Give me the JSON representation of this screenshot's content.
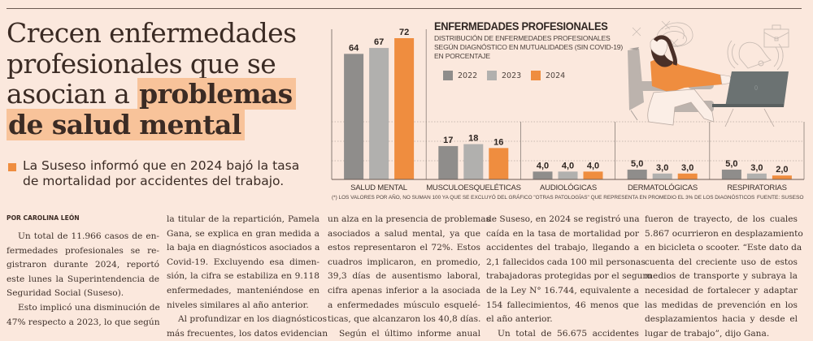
{
  "headline": {
    "lines": [
      "Crecen enfermedades",
      "profesionales que se",
      "asocian a "
    ],
    "highlight_lines": [
      "problemas",
      "de salud mental"
    ]
  },
  "bajada": "La Suseso informó que en 2024 bajó la tasa de mortalidad por accidentes del trabajo.",
  "byline": "POR CAROLINA LEÓN",
  "colors": {
    "background": "#fbe8dd",
    "highlight": "#f8c39a",
    "accent": "#ef8d3f",
    "year_2022": "#8f8d8b",
    "year_2023": "#b1b0ae",
    "year_2024": "#ef8d3f"
  },
  "chart_data": {
    "type": "bar",
    "title": "ENFERMEDADES PROFESIONALES",
    "subtitle": [
      "DISTRIBUCIÓN DE ENFERMEDADES PROFESIONALES",
      "SEGÚN DIAGNÓSTICO EN MUTUALIDADES (SIN COVID-19)",
      "EN PORCENTAJE"
    ],
    "categories": [
      "SALUD MENTAL",
      "MUSCULOESQUELÉTICAS",
      "AUDIOLÓGICAS",
      "DERMATOLÓGICAS",
      "RESPIRATORIAS"
    ],
    "series": [
      {
        "name": "2022",
        "values": [
          64,
          17,
          4.0,
          5.0,
          5.0
        ],
        "labels": [
          "64",
          "17",
          "4,0",
          "5,0",
          "5,0"
        ]
      },
      {
        "name": "2023",
        "values": [
          67,
          18,
          4.0,
          3.0,
          3.0
        ],
        "labels": [
          "67",
          "18",
          "4,0",
          "3,0",
          "3,0"
        ]
      },
      {
        "name": "2024",
        "values": [
          72,
          16,
          4.0,
          3.0,
          2.0
        ],
        "labels": [
          "72",
          "16",
          "4,0",
          "3,0",
          "2,0"
        ]
      }
    ],
    "ylim": [
      0,
      72
    ],
    "grid": true,
    "legend": "top",
    "xlabel": "",
    "ylabel": "",
    "footnote": "(*) LOS VALORES POR AÑO, NO SUMAN 100 YA QUE SE EXCLUYÓ DEL GRÁFICO \"OTRAS PATOLOGÍAS\" QUE REPRESENTA EN PROMEDIO EL 3% DE LOS DIAGNÓSTICOS",
    "source": "FUENTE: SUSESO"
  },
  "illustration": {
    "description": "woman-in-armchair-stressed-with-laptop",
    "icons": [
      "scribble-icon",
      "bell-icon",
      "briefcase-icon",
      "laptop-icon"
    ]
  },
  "article": {
    "columns": [
      {
        "paragraphs": [
          {
            "indent": true,
            "lines": [
              "Un total de 11.966 casos de en-",
              "fermedades profesionales se re-",
              "gistraron durante 2024, reportó",
              "este lunes la Superintendencia de",
              "Seguridad Social (Suseso)."
            ]
          },
          {
            "indent": true,
            "lines": [
              "Esto implicó una disminución de",
              "47% respecto a 2023, lo que según"
            ]
          }
        ]
      },
      {
        "paragraphs": [
          {
            "indent": false,
            "lines": [
              "la titular de la repartición, Pamela",
              "Gana, se explica en gran medida a",
              "la baja en diagnósticos asociados a",
              "Covid-19. Excluyendo esa dimen-",
              "sión, la cifra se estabiliza en 9.118",
              "enfermedades, manteniéndose en",
              "niveles similares al año anterior."
            ]
          },
          {
            "indent": true,
            "lines": [
              "Al profundizar en los diagnósticos",
              "más frecuentes, los datos evidencian"
            ]
          }
        ]
      },
      {
        "paragraphs": [
          {
            "indent": false,
            "lines": [
              "un alza en la presencia de problemas",
              "asociados a salud mental, ya que",
              "estos representaron el 72%. Estos",
              "cuadros implicaron, en promedio,",
              "39,3 días de ausentismo laboral,",
              "cifra apenas inferior a la asociada",
              "a enfermedades músculo esquelé-",
              "ticas, que alcanzaron los 40,8 días."
            ]
          },
          {
            "indent": true,
            "lines": [
              "Según el último informe anual"
            ]
          }
        ]
      },
      {
        "paragraphs": [
          {
            "indent": false,
            "lines": [
              "de Suseso, en 2024 se registró una",
              "caída en la tasa de mortalidad por",
              "accidentes del trabajo, llegando a",
              "2,1 fallecidos cada 100 mil personas",
              "trabajadoras protegidas por el seguro",
              "de la Ley N° 16.744, equivalente a",
              "154 fallecimientos, 46 menos que",
              "el año anterior."
            ]
          },
          {
            "indent": true,
            "lines": [
              "Un total de 56.675 accidentes"
            ]
          }
        ]
      },
      {
        "paragraphs": [
          {
            "indent": false,
            "lines": [
              "fueron de trayecto, de los cuales",
              "5.867 ocurrieron en desplazamiento",
              "en bicicleta o scooter. “Este dato da",
              "cuenta del creciente uso de estos",
              "medios de transporte y subraya la",
              "necesidad de fortalecer y adaptar",
              "las medidas de prevención en los",
              "desplazamientos hacia y desde el",
              "lugar de trabajo”, dijo Gana."
            ]
          }
        ]
      }
    ]
  }
}
